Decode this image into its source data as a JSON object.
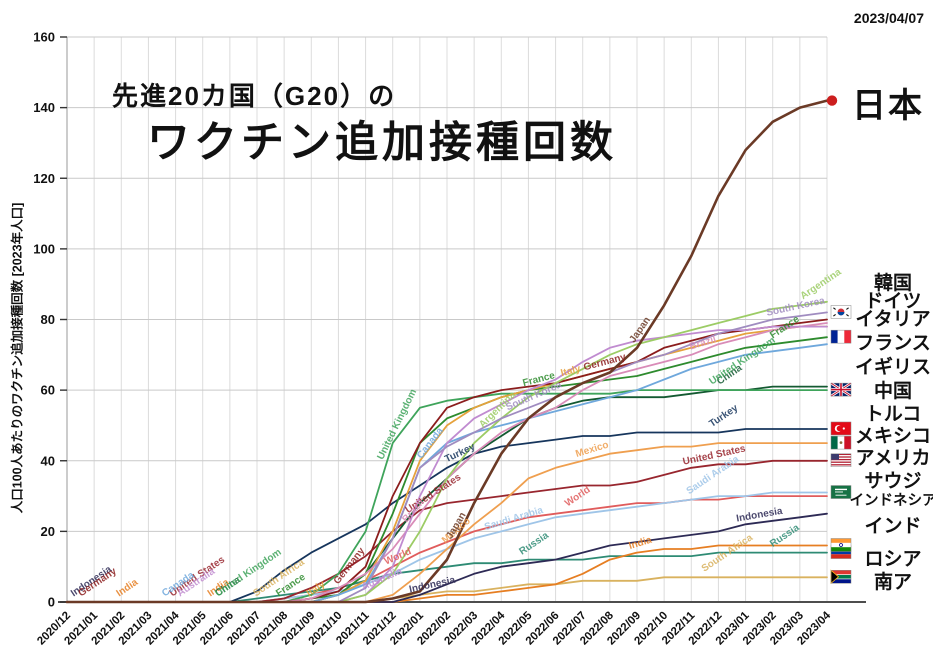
{
  "header": {
    "date_label": "2023/04/07"
  },
  "title": {
    "line1": "先進20カ国（G20）の",
    "line2": "ワクチン追加接種回数"
  },
  "legend": {
    "japan_label": "日本",
    "japan_dot_color": "#cc1e1e",
    "items": [
      {
        "label": "韓国"
      },
      {
        "label": "ドイツ"
      },
      {
        "label": "イタリア"
      },
      {
        "label": "フランス"
      },
      {
        "label": "イギリス"
      },
      {
        "label": "中国"
      },
      {
        "label": "トルコ"
      },
      {
        "label": "メキシコ"
      },
      {
        "label": "アメリカ"
      },
      {
        "label": "サウジ"
      },
      {
        "label": "インドネシア"
      },
      {
        "label": "インド"
      },
      {
        "label": "ロシア"
      },
      {
        "label": "南ア"
      }
    ]
  },
  "chart_data": {
    "type": "line",
    "title": "先進20カ国（G20）の ワクチン追加接種回数",
    "xlabel": "",
    "ylabel": "人口100人あたりのワクチン追加接種回数 [2023年人口]",
    "ylim": [
      0,
      160
    ],
    "y_ticks": [
      0,
      20,
      40,
      60,
      80,
      100,
      120,
      140,
      160
    ],
    "grid": true,
    "legend_position": "right",
    "x": [
      "2020/12",
      "2021/01",
      "2021/02",
      "2021/03",
      "2021/04",
      "2021/05",
      "2021/06",
      "2021/07",
      "2021/08",
      "2021/09",
      "2021/10",
      "2021/11",
      "2021/12",
      "2022/01",
      "2022/02",
      "2022/03",
      "2022/04",
      "2022/05",
      "2022/06",
      "2022/07",
      "2022/08",
      "2022/09",
      "2022/10",
      "2022/11",
      "2022/12",
      "2023/01",
      "2023/02",
      "2023/03",
      "2023/04"
    ],
    "series": [
      {
        "name": "World",
        "color": "#e05c5c",
        "flag": null,
        "label_at": [
          0.42,
          0.66
        ],
        "values": [
          0,
          0,
          0,
          0,
          0,
          0,
          0,
          0,
          1,
          2,
          4,
          6,
          10,
          14,
          17,
          20,
          22,
          24,
          25,
          26,
          27,
          28,
          28,
          29,
          29,
          30,
          30,
          30,
          30
        ]
      },
      {
        "name": "South Africa",
        "color": "#d9b25f",
        "flag": "za",
        "label_at": [
          0.25,
          0.84
        ],
        "values": [
          0,
          0,
          0,
          0,
          0,
          0,
          0,
          0,
          0,
          0,
          0,
          0,
          1,
          2,
          3,
          3,
          4,
          5,
          5,
          6,
          6,
          6,
          7,
          7,
          7,
          7,
          7,
          7,
          7
        ]
      },
      {
        "name": "Russia",
        "color": "#2e8b74",
        "flag": "ru",
        "label_at": [
          0.6,
          0.93
        ],
        "values": [
          0,
          0,
          0,
          0,
          0,
          0,
          0,
          1,
          2,
          3,
          4,
          6,
          8,
          9,
          10,
          11,
          11,
          12,
          12,
          12,
          13,
          13,
          13,
          13,
          14,
          14,
          14,
          14,
          14
        ]
      },
      {
        "name": "India",
        "color": "#e67e22",
        "flag": "in",
        "label_at": [
          0.07,
          0.19,
          0.74
        ],
        "values": [
          0,
          0,
          0,
          0,
          0,
          0,
          0,
          0,
          0,
          0,
          0,
          0,
          0,
          1,
          2,
          2,
          3,
          4,
          5,
          8,
          12,
          14,
          15,
          15,
          16,
          16,
          16,
          16,
          16
        ]
      },
      {
        "name": "Indonesia",
        "color": "#2d2a55",
        "flag": null,
        "label_at": [
          0.01,
          0.45,
          0.88
        ],
        "values": [
          0,
          0,
          0,
          0,
          0,
          0,
          0,
          0,
          0,
          0,
          0,
          0,
          0,
          2,
          5,
          8,
          10,
          11,
          12,
          14,
          16,
          17,
          18,
          19,
          20,
          22,
          23,
          24,
          25
        ]
      },
      {
        "name": "Saudi Arabia",
        "color": "#9fc5e8",
        "flag": "sa",
        "label_at": [
          0.55,
          0.82
        ],
        "values": [
          0,
          0,
          0,
          0,
          0,
          0,
          0,
          0,
          1,
          2,
          3,
          5,
          8,
          12,
          15,
          18,
          20,
          22,
          24,
          25,
          26,
          27,
          28,
          29,
          30,
          30,
          31,
          31,
          31
        ]
      },
      {
        "name": "United States",
        "color": "#98262e",
        "flag": "us",
        "label_at": [
          0.14,
          0.45,
          0.81
        ],
        "values": [
          0,
          0,
          0,
          0,
          0,
          0,
          0,
          0,
          1,
          4,
          8,
          13,
          20,
          26,
          28,
          29,
          30,
          31,
          32,
          33,
          33,
          34,
          36,
          38,
          39,
          39,
          40,
          40,
          40
        ]
      },
      {
        "name": "Mexico",
        "color": "#ef9f4f",
        "flag": "mx",
        "label_at": [
          0.5,
          0.67
        ],
        "values": [
          0,
          0,
          0,
          0,
          0,
          0,
          0,
          0,
          0,
          0,
          0,
          0,
          2,
          8,
          15,
          22,
          28,
          35,
          38,
          40,
          42,
          43,
          44,
          44,
          45,
          45,
          45,
          45,
          45
        ]
      },
      {
        "name": "Turkey",
        "color": "#16355c",
        "flag": "tr",
        "label_at": [
          0.5,
          0.85
        ],
        "values": [
          0,
          0,
          0,
          0,
          0,
          0,
          0,
          3,
          9,
          14,
          18,
          22,
          28,
          33,
          38,
          42,
          44,
          45,
          46,
          47,
          47,
          48,
          48,
          48,
          48,
          49,
          49,
          49,
          49
        ]
      },
      {
        "name": "China",
        "color": "#145a32",
        "flag": null,
        "label_at": [
          0.2,
          0.86
        ],
        "values": [
          0,
          0,
          0,
          0,
          0,
          0,
          0,
          0,
          0,
          0,
          2,
          8,
          18,
          28,
          35,
          42,
          47,
          52,
          55,
          57,
          58,
          58,
          58,
          59,
          60,
          60,
          61,
          61,
          61
        ]
      },
      {
        "name": "United Kingdom",
        "color": "#3fa45b",
        "flag": "gb",
        "label_at": [
          0.2,
          0.42,
          0.85
        ],
        "values": [
          0,
          0,
          0,
          0,
          0,
          0,
          0,
          0,
          0,
          2,
          8,
          20,
          45,
          55,
          57,
          58,
          59,
          59,
          59,
          59,
          59,
          60,
          60,
          60,
          60,
          60,
          60,
          60,
          60
        ]
      },
      {
        "name": "France",
        "color": "#2e8b2e",
        "flag": "fr",
        "label_at": [
          0.28,
          0.6,
          0.93
        ],
        "values": [
          0,
          0,
          0,
          0,
          0,
          0,
          0,
          0,
          0,
          1,
          2,
          8,
          25,
          45,
          52,
          55,
          58,
          60,
          61,
          62,
          63,
          64,
          66,
          68,
          70,
          72,
          73,
          74,
          75
        ]
      },
      {
        "name": "Italy",
        "color": "#e6a23c",
        "flag": null,
        "label_at": [
          0.32,
          0.65
        ],
        "values": [
          0,
          0,
          0,
          0,
          0,
          0,
          0,
          0,
          0,
          0,
          2,
          6,
          20,
          40,
          50,
          55,
          58,
          60,
          62,
          64,
          66,
          68,
          70,
          72,
          74,
          76,
          77,
          78,
          78
        ]
      },
      {
        "name": "Germany",
        "color": "#8b1d1d",
        "flag": null,
        "label_at": [
          0.02,
          0.36,
          0.68
        ],
        "values": [
          0,
          0,
          0,
          0,
          0,
          0,
          0,
          0,
          0,
          1,
          3,
          10,
          30,
          45,
          55,
          58,
          60,
          61,
          62,
          64,
          66,
          68,
          72,
          74,
          76,
          77,
          78,
          79,
          80
        ]
      },
      {
        "name": "Canada",
        "color": "#6fa8dc",
        "flag": null,
        "label_at": [
          0.13,
          0.47
        ],
        "values": [
          0,
          0,
          0,
          0,
          0,
          0,
          0,
          0,
          0,
          0,
          2,
          5,
          18,
          38,
          45,
          48,
          50,
          52,
          54,
          56,
          58,
          60,
          63,
          66,
          68,
          70,
          71,
          72,
          73
        ]
      },
      {
        "name": "Brazil",
        "color": "#d98cb8",
        "flag": null,
        "label_at": [
          0.45,
          0.82
        ],
        "values": [
          0,
          0,
          0,
          0,
          0,
          0,
          0,
          0,
          0,
          1,
          4,
          8,
          15,
          25,
          35,
          42,
          48,
          52,
          55,
          60,
          64,
          66,
          68,
          70,
          73,
          75,
          77,
          78,
          79
        ]
      },
      {
        "name": "Australia",
        "color": "#c08bd0",
        "flag": null,
        "label_at": [
          0.15,
          0.39
        ],
        "values": [
          0,
          0,
          0,
          0,
          0,
          0,
          0,
          0,
          0,
          0,
          0,
          2,
          10,
          30,
          45,
          52,
          56,
          60,
          63,
          68,
          72,
          74,
          75,
          76,
          77,
          77,
          78,
          78,
          78
        ]
      },
      {
        "name": "Argentina",
        "color": "#9ccc65",
        "flag": null,
        "label_at": [
          0.55,
          0.97
        ],
        "values": [
          0,
          0,
          0,
          0,
          0,
          0,
          0,
          0,
          0,
          0,
          0,
          2,
          8,
          20,
          35,
          45,
          52,
          58,
          62,
          66,
          70,
          73,
          75,
          77,
          79,
          81,
          83,
          84,
          85
        ]
      },
      {
        "name": "South Korea",
        "color": "#a08cc0",
        "flag": "kr",
        "label_at": [
          0.58,
          0.92
        ],
        "values": [
          0,
          0,
          0,
          0,
          0,
          0,
          0,
          0,
          0,
          0,
          0,
          4,
          18,
          38,
          44,
          48,
          52,
          55,
          58,
          62,
          65,
          68,
          70,
          73,
          76,
          78,
          80,
          81,
          82
        ]
      },
      {
        "name": "Japan",
        "color": "#6b3a26",
        "flag": null,
        "marker": "dot",
        "marker_color": "#cc1e1e",
        "label_at": [
          0.51,
          0.75
        ],
        "values": [
          0,
          0,
          0,
          0,
          0,
          0,
          0,
          0,
          0,
          0,
          0,
          0,
          1,
          3,
          12,
          28,
          42,
          52,
          58,
          62,
          65,
          72,
          84,
          98,
          115,
          128,
          136,
          140,
          142
        ]
      }
    ]
  }
}
